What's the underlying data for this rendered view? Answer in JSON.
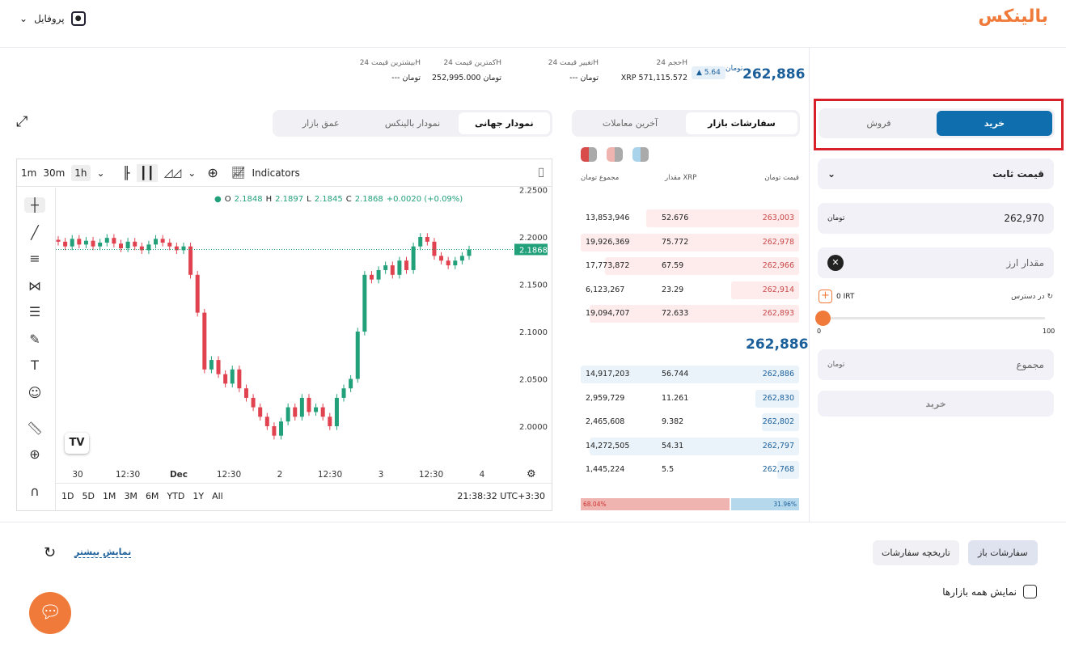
{
  "header": {
    "logo": "بالینکس",
    "profile": "پروفایل"
  },
  "ticker": {
    "price": "262,886",
    "unit": "تومان",
    "change": "5.64",
    "stats": [
      {
        "label": "حجم 24H",
        "value": "XRP 571,115.572"
      },
      {
        "label": "تغییر قیمت 24H",
        "value": "--- تومان"
      },
      {
        "label": "کمترین قیمت 24H",
        "value": "252,995.000 تومان"
      },
      {
        "label": "بیشترین قیمت 24H",
        "value": "--- تومان"
      }
    ]
  },
  "chart_tabs": [
    "نمودار جهانی",
    "نمودار بالینکس",
    "عمق بازار"
  ],
  "orderbook_tabs": [
    "سفارشات بازار",
    "آخرین معاملات"
  ],
  "trade_tabs": [
    "خرید",
    "فروش"
  ],
  "toolbar": {
    "intervals": [
      "1m",
      "30m",
      "1h"
    ],
    "indicators": "Indicators"
  },
  "chart_legend": {
    "o": "2.1848",
    "h": "2.1897",
    "l": "2.1845",
    "c": "2.1868",
    "chg": "+0.0020 (+0.09%)"
  },
  "chart_data": {
    "type": "candlestick",
    "y_ticks": [
      "2.2500",
      "2.2000",
      "2.1500",
      "2.1000",
      "2.0500",
      "2.0000"
    ],
    "ylim": [
      1.98,
      2.25
    ],
    "x_ticks": [
      "30",
      "12:30",
      "Dec",
      "12:30",
      "2",
      "12:30",
      "3",
      "12:30",
      "4"
    ],
    "last_price": "2.1868",
    "close": [
      2.195,
      2.19,
      2.198,
      2.192,
      2.196,
      2.19,
      2.194,
      2.199,
      2.193,
      2.188,
      2.195,
      2.19,
      2.186,
      2.192,
      2.198,
      2.194,
      2.19,
      2.186,
      2.19,
      2.16,
      2.12,
      2.06,
      2.07,
      2.055,
      2.045,
      2.06,
      2.04,
      2.03,
      2.02,
      2.01,
      2.0,
      1.99,
      2.005,
      2.02,
      2.01,
      2.03,
      2.015,
      2.02,
      2.01,
      2.0,
      2.03,
      2.04,
      2.05,
      2.1,
      2.16,
      2.155,
      2.165,
      2.17,
      2.16,
      2.175,
      2.165,
      2.19,
      2.2,
      2.195,
      2.18,
      2.175,
      2.17,
      2.175,
      2.18,
      2.1868
    ],
    "colors": {
      "up": "#22a07a",
      "down": "#e0424f"
    }
  },
  "ranges": [
    "1D",
    "5D",
    "1M",
    "3M",
    "6M",
    "YTD",
    "1Y",
    "All"
  ],
  "clock": "21:38:32 UTC+3:30",
  "orderbook": {
    "headers": [
      "قیمت تومان",
      "مقدار XRP",
      "مجموع تومان"
    ],
    "asks": [
      {
        "p": "263,003",
        "a": "52.676",
        "t": "13,853,946",
        "d": 70
      },
      {
        "p": "262,978",
        "a": "75.772",
        "t": "19,926,369",
        "d": 100
      },
      {
        "p": "262,966",
        "a": "67.59",
        "t": "17,773,872",
        "d": 89
      },
      {
        "p": "262,914",
        "a": "23.29",
        "t": "6,123,267",
        "d": 31
      },
      {
        "p": "262,893",
        "a": "72.633",
        "t": "19,094,707",
        "d": 96
      }
    ],
    "mid": "262,886",
    "bids": [
      {
        "p": "262,886",
        "a": "56.744",
        "t": "14,917,203",
        "d": 100
      },
      {
        "p": "262,830",
        "a": "11.261",
        "t": "2,959,729",
        "d": 20
      },
      {
        "p": "262,802",
        "a": "9.382",
        "t": "2,465,608",
        "d": 17
      },
      {
        "p": "262,797",
        "a": "54.31",
        "t": "14,272,505",
        "d": 96
      },
      {
        "p": "262,768",
        "a": "5.5",
        "t": "1,445,224",
        "d": 10
      }
    ],
    "sell_pct": "68.04%",
    "buy_pct": "31.96%",
    "sell_frac": 68.04
  },
  "form": {
    "order_type": "قیمت ثابت",
    "price": "262,970",
    "amount_placeholder": "مقدار ارز",
    "available_label": "در دسترس",
    "available": "0 IRT",
    "slider_min": "0",
    "slider_max": "100",
    "slider_value": 0,
    "total_placeholder": "مجموع",
    "submit": "خرید",
    "accent": "#0f6fae",
    "highlight": "#d9202a"
  },
  "bottom": {
    "tabs": [
      "سفارشات باز",
      "تاریخچه سفارشات"
    ],
    "show_more": "نمایش بیشتر",
    "all_markets": "نمایش همه بازارها"
  }
}
